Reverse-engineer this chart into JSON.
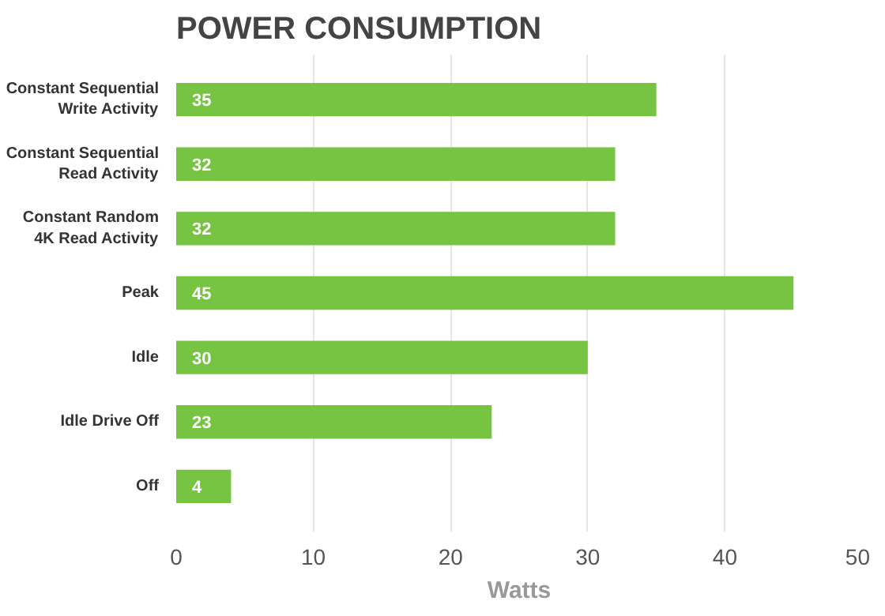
{
  "chart_data": {
    "type": "bar",
    "orientation": "horizontal",
    "title": "POWER CONSUMPTION",
    "xlabel": "Watts",
    "categories": [
      "Constant Sequential\nWrite Activity",
      "Constant Sequential\nRead Activity",
      "Constant Random\n4K Read Activity",
      "Peak",
      "Idle",
      "Idle Drive Off",
      "Off"
    ],
    "values": [
      35,
      32,
      32,
      45,
      30,
      23,
      4
    ],
    "color": "#76c442",
    "xlim": [
      0,
      50
    ],
    "xticks": [
      0,
      10,
      20,
      30,
      40,
      50
    ],
    "grid": "x",
    "data_labels": true
  }
}
